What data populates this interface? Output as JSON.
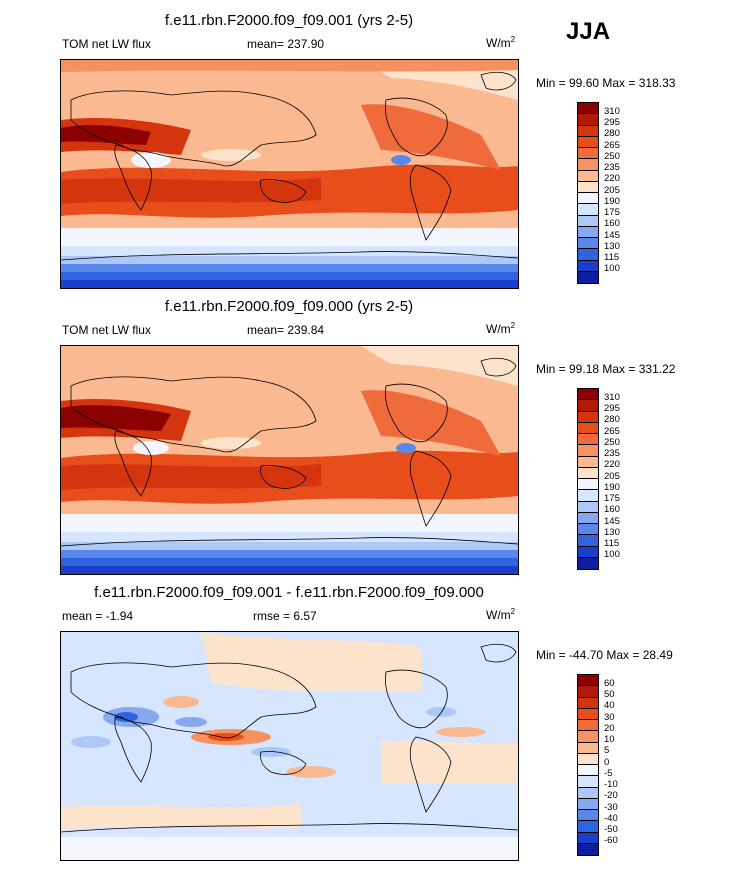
{
  "season": "JJA",
  "units_label": "W/m",
  "units_sup": "2",
  "panels": [
    {
      "title": "f.e11.rbn.F2000.f09_f09.001 (yrs 2-5)",
      "left_label": "TOM net LW flux",
      "center_label": "mean= 237.90",
      "minmax": "Min =  99.60 Max = 318.33",
      "colorbar_labels": [
        "310",
        "295",
        "280",
        "265",
        "250",
        "235",
        "220",
        "205",
        "190",
        "175",
        "160",
        "145",
        "130",
        "115",
        "100"
      ],
      "colorbar_colors": [
        "#8b0000",
        "#b21a08",
        "#d4350e",
        "#e84e1b",
        "#f06b3c",
        "#f5925f",
        "#fab990",
        "#fde2cc",
        "#f3f6ff",
        "#d6e6ff",
        "#adc7f7",
        "#85a8f0",
        "#5a88ea",
        "#2f63e0",
        "#1a3fcc",
        "#0d1e9e"
      ]
    },
    {
      "title": "f.e11.rbn.F2000.f09_f09.000 (yrs 2-5)",
      "left_label": "TOM net LW flux",
      "center_label": "mean= 239.84",
      "minmax": "Min =  99.18 Max = 331.22",
      "colorbar_labels": [
        "310",
        "295",
        "280",
        "265",
        "250",
        "235",
        "220",
        "205",
        "190",
        "175",
        "160",
        "145",
        "130",
        "115",
        "100"
      ],
      "colorbar_colors": [
        "#8b0000",
        "#b21a08",
        "#d4350e",
        "#e84e1b",
        "#f06b3c",
        "#f5925f",
        "#fab990",
        "#fde2cc",
        "#f3f6ff",
        "#d6e6ff",
        "#adc7f7",
        "#85a8f0",
        "#5a88ea",
        "#2f63e0",
        "#1a3fcc",
        "#0d1e9e"
      ]
    },
    {
      "title": "f.e11.rbn.F2000.f09_f09.001 - f.e11.rbn.F2000.f09_f09.000",
      "left_label": "mean =  -1.94",
      "center_label": "rmse =   6.57",
      "minmax": "Min = -44.70 Max =  28.49",
      "colorbar_labels": [
        "60",
        "50",
        "40",
        "30",
        "20",
        "10",
        "5",
        "0",
        "-5",
        "-10",
        "-20",
        "-30",
        "-40",
        "-50",
        "-60"
      ],
      "colorbar_colors": [
        "#8b0000",
        "#b21a08",
        "#d4350e",
        "#e84e1b",
        "#f06b3c",
        "#f5925f",
        "#fab990",
        "#fde2cc",
        "#f3f6ff",
        "#d6e6ff",
        "#adc7f7",
        "#85a8f0",
        "#5a88ea",
        "#2f63e0",
        "#1a3fcc",
        "#0d1e9e"
      ]
    }
  ],
  "chart_data": [
    {
      "type": "heatmap",
      "title": "f.e11.rbn.F2000.f09_f09.001 (yrs 2-5)",
      "mean": 237.9,
      "min": 99.6,
      "max": 318.33,
      "levels": [
        100,
        115,
        130,
        145,
        160,
        175,
        190,
        205,
        220,
        235,
        250,
        265,
        280,
        295,
        310
      ]
    },
    {
      "type": "heatmap",
      "title": "f.e11.rbn.F2000.f09_f09.000 (yrs 2-5)",
      "mean": 239.84,
      "min": 99.18,
      "max": 331.22,
      "levels": [
        100,
        115,
        130,
        145,
        160,
        175,
        190,
        205,
        220,
        235,
        250,
        265,
        280,
        295,
        310
      ]
    },
    {
      "type": "heatmap",
      "title": "f.e11.rbn.F2000.f09_f09.001 - f.e11.rbn.F2000.f09_f09.000",
      "mean": -1.94,
      "rmse": 6.57,
      "min": -44.7,
      "max": 28.49,
      "levels": [
        -60,
        -50,
        -40,
        -30,
        -20,
        -10,
        -5,
        0,
        5,
        10,
        20,
        30,
        40,
        50,
        60
      ]
    }
  ]
}
